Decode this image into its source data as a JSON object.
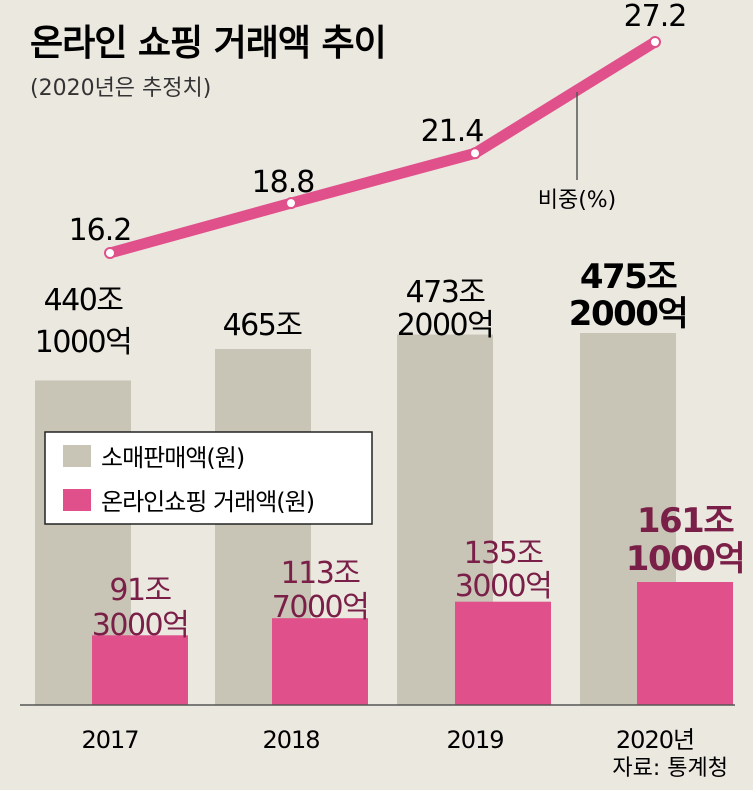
{
  "chart_data": {
    "type": "bar",
    "title": "온라인 쇼핑 거래액 추이",
    "subtitle": "(2020년은 추정치)",
    "categories": [
      "2017",
      "2018",
      "2019",
      "2020년"
    ],
    "series": [
      {
        "name": "소매판매액(원)",
        "color": "#c8c4b6",
        "values": [
          440.1,
          465.0,
          473.2,
          475.2
        ],
        "labels": [
          [
            "440조",
            "1000억"
          ],
          [
            "465조"
          ],
          [
            "473조",
            "2000억"
          ],
          [
            "475조",
            "2000억"
          ]
        ]
      },
      {
        "name": "온라인쇼핑 거래액(원)",
        "color": "#e0508a",
        "values": [
          91.3,
          113.7,
          135.3,
          161.1
        ],
        "labels": [
          [
            "91조",
            "3000억"
          ],
          [
            "113조",
            "7000억"
          ],
          [
            "135조",
            "3000억"
          ],
          [
            "161조",
            "1000억"
          ]
        ]
      }
    ],
    "line": {
      "name": "비중(%)",
      "color": "#e0508a",
      "values": [
        16.2,
        18.8,
        21.4,
        27.2
      ],
      "labels": [
        "16.2",
        "18.8",
        "21.4",
        "27.2"
      ]
    },
    "legend_position": "middle-left",
    "source": "자료: 통계청"
  }
}
